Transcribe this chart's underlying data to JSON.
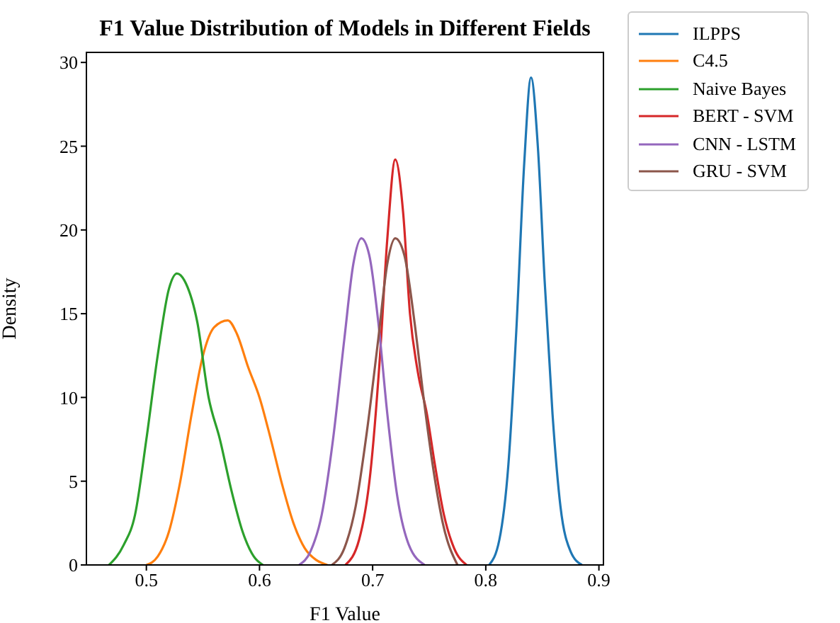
{
  "chart_data": {
    "type": "line",
    "title": "F1 Value Distribution of Models in Different Fields",
    "xlabel": "F1 Value",
    "ylabel": "Density",
    "xlim": [
      0.447,
      0.904
    ],
    "xticks": [
      0.5,
      0.6,
      0.7,
      0.8,
      0.9
    ],
    "ylim": [
      0,
      30.6
    ],
    "yticks": [
      0,
      5,
      10,
      15,
      20,
      25,
      30
    ],
    "grid": false,
    "legend": "top right",
    "marker": "none",
    "line_style": "solid",
    "series": [
      {
        "name": "ILPPS",
        "color": "#1f77b4",
        "x": [
          0.803,
          0.812,
          0.82,
          0.827,
          0.834,
          0.84,
          0.846,
          0.852,
          0.859,
          0.866,
          0.875,
          0.885
        ],
        "values": [
          0,
          1.5,
          6,
          14,
          24,
          29.1,
          25,
          17,
          9,
          3.5,
          0.8,
          0
        ]
      },
      {
        "name": "C4.5",
        "color": "#ff7f0e",
        "x": [
          0.5,
          0.51,
          0.52,
          0.53,
          0.54,
          0.55,
          0.56,
          0.572,
          0.58,
          0.59,
          0.6,
          0.61,
          0.62,
          0.63,
          0.64,
          0.65,
          0.66
        ],
        "values": [
          0,
          0.5,
          2,
          5,
          9,
          12.5,
          14.2,
          14.6,
          13.8,
          11.8,
          10,
          7.5,
          4.8,
          2.5,
          1,
          0.3,
          0
        ]
      },
      {
        "name": "Naive Bayes",
        "color": "#2ca02c",
        "x": [
          0.467,
          0.48,
          0.49,
          0.5,
          0.51,
          0.52,
          0.527,
          0.535,
          0.545,
          0.555,
          0.565,
          0.575,
          0.585,
          0.595,
          0.603
        ],
        "values": [
          0,
          1.2,
          3,
          7.5,
          12.5,
          16.5,
          17.4,
          16.8,
          14.5,
          10,
          7.5,
          4.5,
          2,
          0.5,
          0
        ]
      },
      {
        "name": "BERT - SVM",
        "color": "#d62728",
        "x": [
          0.676,
          0.688,
          0.698,
          0.706,
          0.713,
          0.72,
          0.727,
          0.733,
          0.74,
          0.748,
          0.755,
          0.763,
          0.772,
          0.783
        ],
        "values": [
          0,
          1.5,
          5.5,
          12,
          19.5,
          24.2,
          21,
          15,
          11.5,
          9,
          6,
          3,
          1,
          0
        ]
      },
      {
        "name": "CNN - LSTM",
        "color": "#9467bd",
        "x": [
          0.635,
          0.645,
          0.655,
          0.665,
          0.675,
          0.683,
          0.69,
          0.697,
          0.705,
          0.713,
          0.722,
          0.732,
          0.746
        ],
        "values": [
          0,
          0.8,
          3,
          7.5,
          13.5,
          18,
          19.5,
          18.5,
          14.5,
          9,
          4,
          1.2,
          0
        ]
      },
      {
        "name": "GRU - SVM",
        "color": "#8c564b",
        "x": [
          0.664,
          0.675,
          0.685,
          0.695,
          0.705,
          0.713,
          0.72,
          0.728,
          0.737,
          0.745,
          0.753,
          0.762,
          0.775
        ],
        "values": [
          0,
          1,
          3.5,
          8,
          13.5,
          18,
          19.5,
          18.5,
          14.5,
          10,
          6,
          2.5,
          0
        ]
      }
    ]
  }
}
